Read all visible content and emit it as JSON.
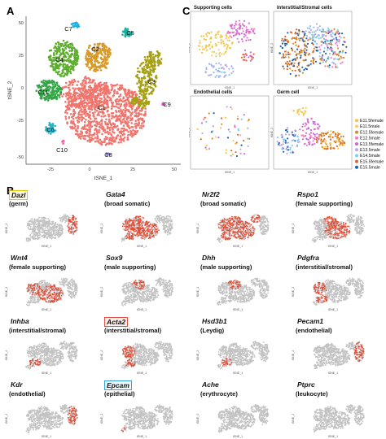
{
  "panelA": {
    "letter": "A",
    "xlabel": "tSNE_1",
    "ylabel": "tSNE_2",
    "x_ticks": [
      "-25",
      "0",
      "25",
      "50"
    ],
    "y_ticks": [
      "-50",
      "-25",
      "0",
      "25",
      "50"
    ],
    "clusters": [
      {
        "label": "C1",
        "color": "#f0756d"
      },
      {
        "label": "C2",
        "color": "#d89a2a"
      },
      {
        "label": "C3",
        "color": "#a6a014"
      },
      {
        "label": "C4",
        "color": "#5cae2c"
      },
      {
        "label": "C5",
        "color": "#17b3a0"
      },
      {
        "label": "C6",
        "color": "#2ab6c8"
      },
      {
        "label": "C7",
        "color": "#17b2e6"
      },
      {
        "label": "C8",
        "color": "#8a85e8"
      },
      {
        "label": "C9",
        "color": "#e064d0"
      },
      {
        "label": "C10",
        "color": "#f06aa8"
      },
      {
        "label": "C11",
        "color": "#35a548"
      }
    ]
  },
  "panelC": {
    "letter": "C",
    "subplots": [
      {
        "title": "Supporting cells"
      },
      {
        "title": "Interstitial/Stromal cells"
      },
      {
        "title": "Endothelial cells"
      },
      {
        "title": "Germ cell"
      }
    ],
    "axis_x": "tSNE_1",
    "axis_y": "tSNE_2",
    "legend": [
      {
        "label": "E11.5female",
        "color": "#f4c542"
      },
      {
        "label": "E11.5male",
        "color": "#e8d27a"
      },
      {
        "label": "E12.5female",
        "color": "#d58a2a"
      },
      {
        "label": "E12.5male",
        "color": "#f07ec0"
      },
      {
        "label": "E13.5female",
        "color": "#c76ad8"
      },
      {
        "label": "E13.5male",
        "color": "#b9a8e8"
      },
      {
        "label": "E14.5male",
        "color": "#7fd0e6"
      },
      {
        "label": "E15.5female",
        "color": "#e8641e"
      },
      {
        "label": "E15.5male",
        "color": "#1f5fb0"
      }
    ]
  },
  "panelB": {
    "letter": "B",
    "axis_x": "tSNE_1",
    "axis_y": "tSNE_2",
    "genes": [
      {
        "name": "Dazl",
        "desc": "(germ)",
        "box": "yellow"
      },
      {
        "name": "Gata4",
        "desc": "(broad somatic)",
        "box": ""
      },
      {
        "name": "Nr2f2",
        "desc": "(broad somatic)",
        "box": ""
      },
      {
        "name": "Rspo1",
        "desc": "(female supporting)",
        "box": ""
      },
      {
        "name": "Wnt4",
        "desc": "(female supporting)",
        "box": ""
      },
      {
        "name": "Sox9",
        "desc": "(male supporting)",
        "box": ""
      },
      {
        "name": "Dhh",
        "desc": "(male supporting)",
        "box": ""
      },
      {
        "name": "Pdgfra",
        "desc": "(interstitial/stromal)",
        "box": ""
      },
      {
        "name": "Inhba",
        "desc": "(interstitial/stromal)",
        "box": ""
      },
      {
        "name": "Acta2",
        "desc": "(interstitial/stromal)",
        "box": "red"
      },
      {
        "name": "Hsd3b1",
        "desc": "(Leydig)",
        "box": ""
      },
      {
        "name": "Pecam1",
        "desc": "(endothelial)",
        "box": ""
      },
      {
        "name": "Kdr",
        "desc": "(endothelial)",
        "box": ""
      },
      {
        "name": "Epcam",
        "desc": "(epithelial)",
        "box": "blue"
      },
      {
        "name": "Ache",
        "desc": "(erythrocyte)",
        "box": ""
      },
      {
        "name": "Ptprc",
        "desc": "(leukocyte)",
        "box": ""
      }
    ]
  }
}
